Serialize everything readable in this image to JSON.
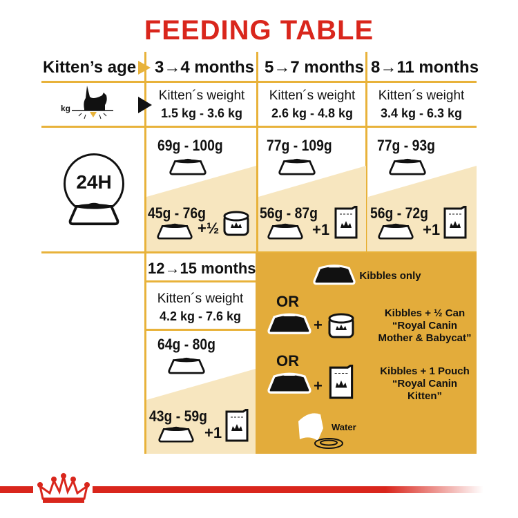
{
  "title": "FEEDING TABLE",
  "header": {
    "age_label": "Kitten’s age",
    "cols": [
      "3→4 months",
      "5→7 months",
      "8→11 months"
    ]
  },
  "weight_icon_label": "kg",
  "weight_label": "Kitten´s weight",
  "weights": [
    "1.5 kg - 3.6 kg",
    "2.6 kg - 4.8 kg",
    "3.4 kg - 6.3 kg"
  ],
  "dry": [
    "69g - 100g",
    "77g - 109g",
    "77g - 93g"
  ],
  "mixed": [
    "45g - 76g",
    "56g - 87g",
    "56g - 72g"
  ],
  "mixed_add": [
    "+½",
    "+1",
    "+1"
  ],
  "icon_24h": "24H",
  "row2": {
    "age": "12→15 months",
    "weight": "4.2 kg - 7.6 kg",
    "dry": "64g - 80g",
    "mixed": "43g - 59g",
    "mixed_add": "+1"
  },
  "legend": {
    "kibbles_only": "Kibbles only",
    "or": "OR",
    "can_line1": "Kibbles + ½ Can",
    "can_line2": "“Royal Canin",
    "can_line3": "Mother & Babycat”",
    "pouch_line1": "Kibbles + 1 Pouch",
    "pouch_line2": "“Royal Canin",
    "pouch_line3": "Kitten”",
    "water": "Water"
  },
  "colors": {
    "title": "#d9261c",
    "gold": "#e3ac3b",
    "line": "#e8b23a",
    "cream": "#f7e6bf",
    "brand_red": "#d9261c"
  }
}
